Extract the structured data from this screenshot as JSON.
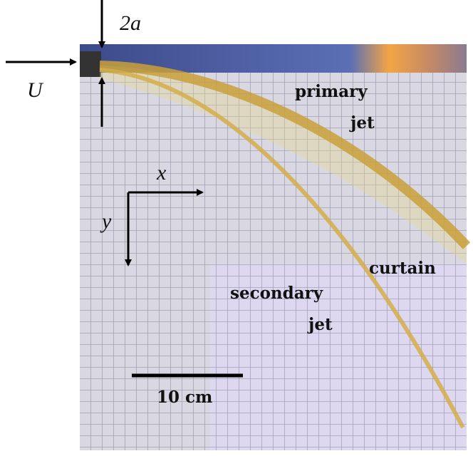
{
  "labels": {
    "nozzle_width": "2a",
    "velocity": "U",
    "axis_x": "x",
    "axis_y": "y",
    "primary_jet": [
      "primary",
      "jet"
    ],
    "curtain": "curtain",
    "secondary_jet": [
      "secondary",
      "jet"
    ],
    "scale_bar": "10 cm"
  }
}
